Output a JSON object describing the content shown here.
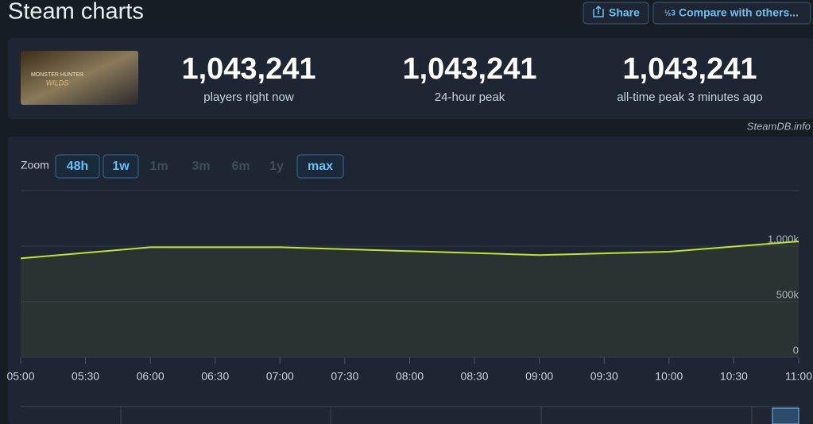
{
  "header": {
    "title": "Steam charts",
    "buttons": [
      "Share",
      "Compare with others..."
    ]
  },
  "game": {
    "image_text": [
      "MONSTER HUNTER",
      "WILDS"
    ]
  },
  "stats": [
    {
      "value": "1,043,241",
      "label": "players right now"
    },
    {
      "value": "1,043,241",
      "label": "24-hour peak"
    },
    {
      "value": "1,043,241",
      "label": "all-time peak 3 minutes ago"
    }
  ],
  "watermark": "SteamDB.info",
  "zoom": {
    "label": "Zoom",
    "options": [
      "48h",
      "1w",
      "1m",
      "3m",
      "6m",
      "1y",
      "max"
    ],
    "enabled": [
      true,
      true,
      false,
      false,
      false,
      false,
      true
    ]
  },
  "chart_data": {
    "type": "line",
    "x": [
      "05:00",
      "06:00",
      "07:00",
      "08:00",
      "09:00",
      "10:00",
      "11:00"
    ],
    "values": [
      890000,
      990000,
      990000,
      955000,
      920000,
      950000,
      1043241
    ],
    "color": "#bfe32e",
    "xticks": [
      "05:00",
      "05:30",
      "06:00",
      "06:30",
      "07:00",
      "07:30",
      "08:00",
      "08:30",
      "09:00",
      "09:30",
      "10:00",
      "10:30",
      "11:00"
    ],
    "ylim": [
      0,
      1500000
    ],
    "yticks": [
      {
        "value": 0,
        "label": "0"
      },
      {
        "value": 500000,
        "label": "500k"
      },
      {
        "value": 1000000,
        "label": "1,000k"
      }
    ],
    "grid": true
  }
}
